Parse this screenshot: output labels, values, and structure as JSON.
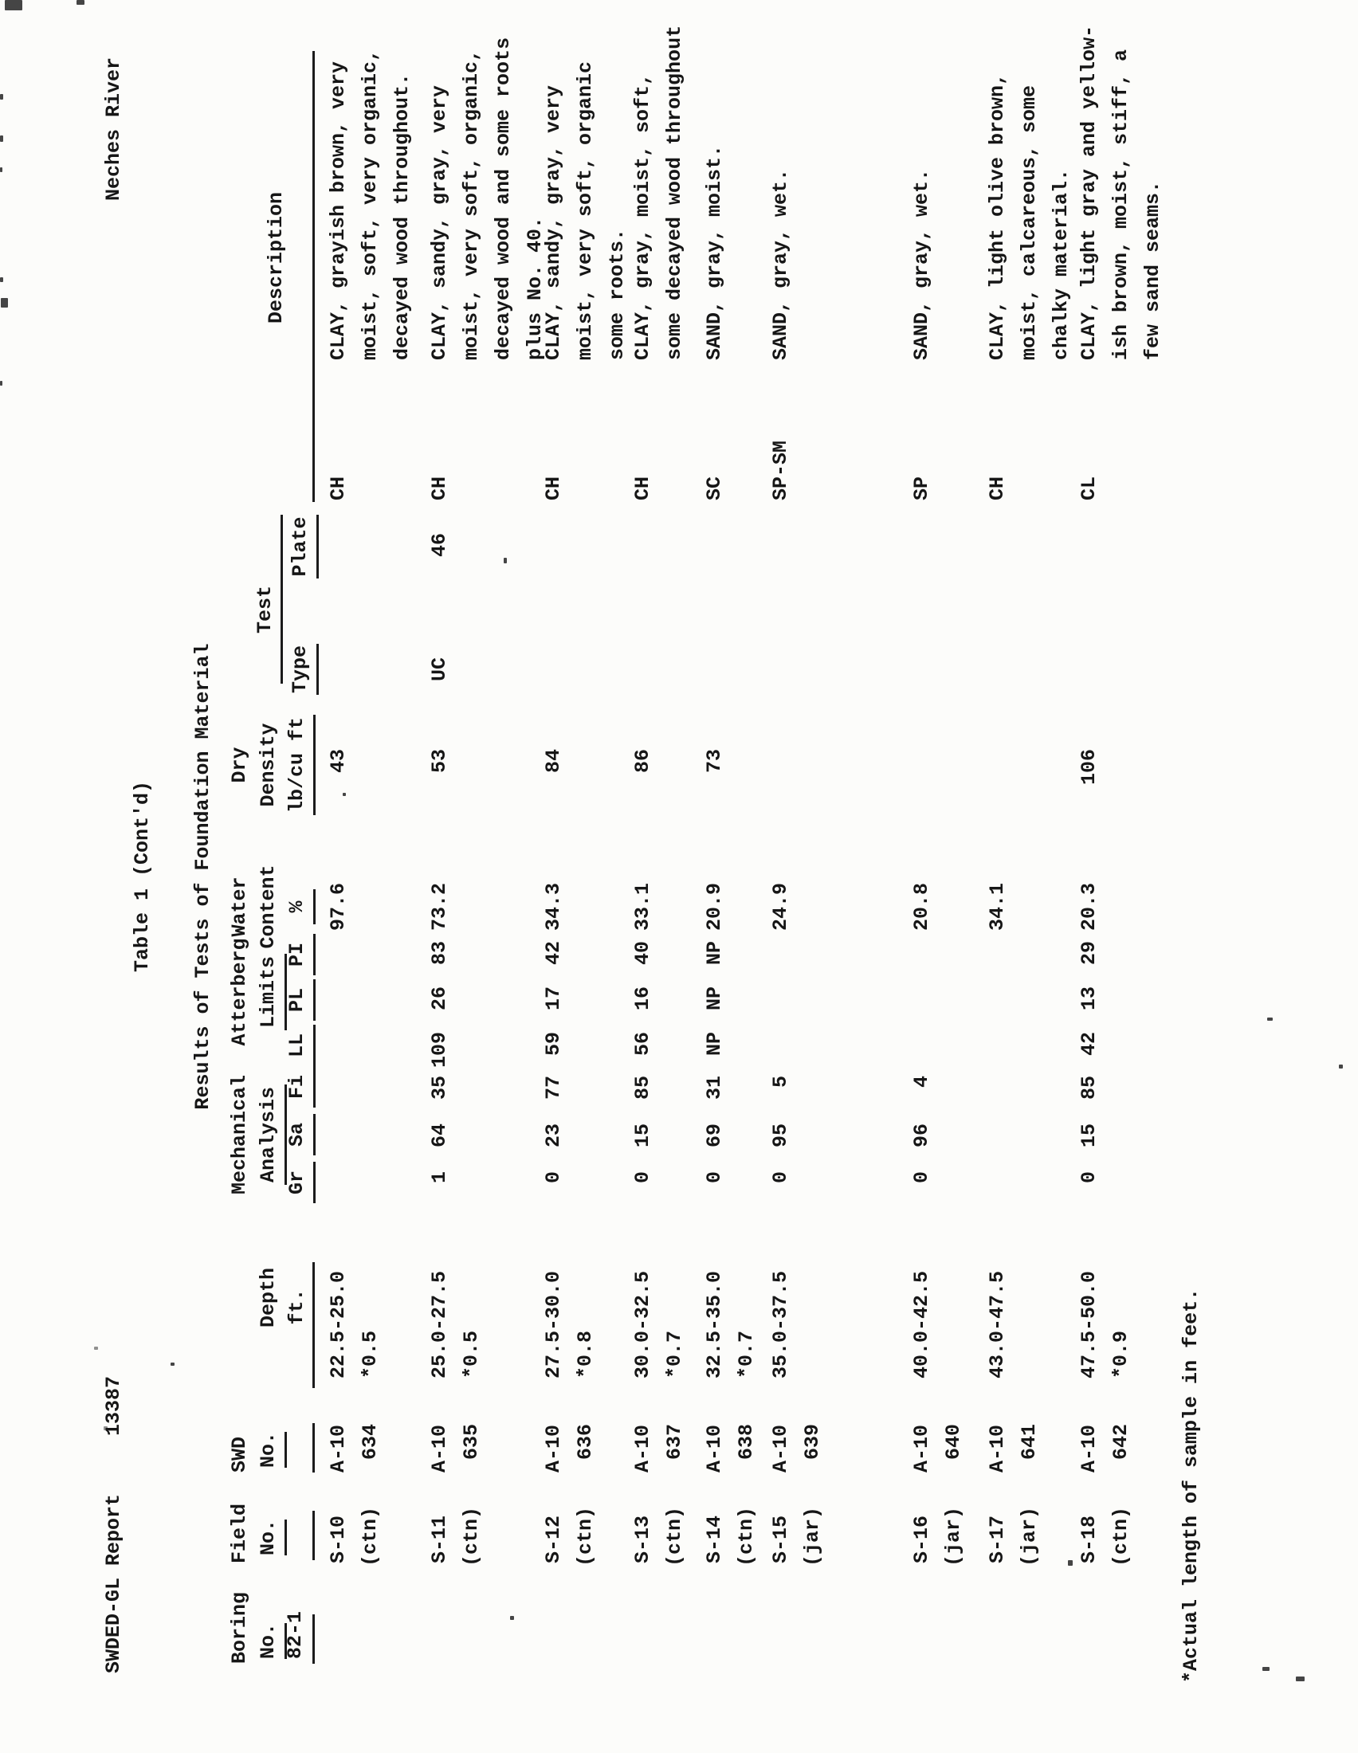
{
  "titles": {
    "report_label": "SWDED-GL Report",
    "report_number": "13387",
    "table_title": "Table 1 (Cont'd)",
    "project_name": "Neches River",
    "subtitle": "Results of Tests of Foundation Material",
    "footnote": "*Actual length of sample in feet."
  },
  "headers": {
    "boring": [
      "Boring",
      "No."
    ],
    "field": [
      "Field",
      "No."
    ],
    "swd": [
      "SWD",
      "No."
    ],
    "depth": [
      "Depth",
      "ft."
    ],
    "mechanical": [
      "Mechanical",
      "Analysis"
    ],
    "mech_subs": [
      "Gr",
      "Sa",
      "Fi"
    ],
    "atterberg": [
      "Atterberg",
      "Limits"
    ],
    "atter_subs": [
      "LL",
      "PL",
      "PI"
    ],
    "water": [
      "Water",
      "Content",
      "%"
    ],
    "dry": [
      "Dry",
      "Density",
      "lb/cu ft"
    ],
    "test": "Test",
    "test_subs": [
      "Type",
      "Plate"
    ],
    "description": "Description"
  },
  "boring_no": "82-1",
  "rows": [
    {
      "field": [
        "S-10",
        "(ctn)"
      ],
      "swd": [
        "A-10",
        "634"
      ],
      "depth": [
        "22.5-25.0",
        "*0.5"
      ],
      "gr": "",
      "sa": "",
      "fi": "",
      "ll": "",
      "pl": "",
      "pi": "",
      "wc": "97.6",
      "dd": "43",
      "type": "",
      "plate": "",
      "sym": "CH",
      "desc": [
        "CLAY, grayish brown, very",
        "moist, soft, very organic,",
        "decayed wood throughout."
      ]
    },
    {
      "field": [
        "S-11",
        "(ctn)"
      ],
      "swd": [
        "A-10",
        "635"
      ],
      "depth": [
        "25.0-27.5",
        "*0.5"
      ],
      "gr": "1",
      "sa": "64",
      "fi": "35",
      "ll": "109",
      "pl": "26",
      "pi": "83",
      "wc": "73.2",
      "dd": "53",
      "type": "UC",
      "plate": "46",
      "sym": "CH",
      "desc": [
        "CLAY, sandy, gray, very",
        "moist, very soft, organic,",
        "decayed wood and some roots",
        "plus No. 40."
      ]
    },
    {
      "field": [
        "S-12",
        "(ctn)"
      ],
      "swd": [
        "A-10",
        "636"
      ],
      "depth": [
        "27.5-30.0",
        "*0.8"
      ],
      "gr": "0",
      "sa": "23",
      "fi": "77",
      "ll": "59",
      "pl": "17",
      "pi": "42",
      "wc": "34.3",
      "dd": "84",
      "type": "",
      "plate": "",
      "sym": "CH",
      "desc": [
        "CLAY, sandy, gray, very",
        "moist, very soft, organic",
        "some roots."
      ]
    },
    {
      "field": [
        "S-13",
        "(ctn)"
      ],
      "swd": [
        "A-10",
        "637"
      ],
      "depth": [
        "30.0-32.5",
        "*0.7"
      ],
      "gr": "0",
      "sa": "15",
      "fi": "85",
      "ll": "56",
      "pl": "16",
      "pi": "40",
      "wc": "33.1",
      "dd": "86",
      "type": "",
      "plate": "",
      "sym": "CH",
      "desc": [
        "CLAY, gray, moist, soft,",
        "some decayed wood throughout"
      ]
    },
    {
      "field": [
        "S-14",
        "(ctn)"
      ],
      "swd": [
        "A-10",
        "638"
      ],
      "depth": [
        "32.5-35.0",
        "*0.7"
      ],
      "gr": "0",
      "sa": "69",
      "fi": "31",
      "ll": "NP",
      "pl": "NP",
      "pi": "NP",
      "wc": "20.9",
      "dd": "73",
      "type": "",
      "plate": "",
      "sym": "SC",
      "desc": [
        "SAND, gray, moist."
      ]
    },
    {
      "field": [
        "S-15",
        "(jar)"
      ],
      "swd": [
        "A-10",
        "639"
      ],
      "depth": [
        "35.0-37.5",
        ""
      ],
      "gr": "0",
      "sa": "95",
      "fi": "5",
      "ll": "",
      "pl": "",
      "pi": "",
      "wc": "24.9",
      "dd": "",
      "type": "",
      "plate": "",
      "sym": "SP-SM",
      "desc": [
        "SAND, gray, wet."
      ]
    },
    {
      "field": [
        "S-16",
        "(jar)"
      ],
      "swd": [
        "A-10",
        "640"
      ],
      "depth": [
        "40.0-42.5",
        ""
      ],
      "gr": "0",
      "sa": "96",
      "fi": "4",
      "ll": "",
      "pl": "",
      "pi": "",
      "wc": "20.8",
      "dd": "",
      "type": "",
      "plate": "",
      "sym": "SP",
      "desc": [
        "SAND, gray, wet."
      ]
    },
    {
      "field": [
        "S-17",
        "(jar)"
      ],
      "swd": [
        "A-10",
        "641"
      ],
      "depth": [
        "43.0-47.5",
        ""
      ],
      "gr": "",
      "sa": "",
      "fi": "",
      "ll": "",
      "pl": "",
      "pi": "",
      "wc": "34.1",
      "dd": "",
      "type": "",
      "plate": "",
      "sym": "CH",
      "desc": [
        "CLAY, light olive brown,",
        "moist, calcareous, some",
        "chalky material."
      ]
    },
    {
      "field": [
        "S-18",
        "(ctn)"
      ],
      "swd": [
        "A-10",
        "642"
      ],
      "depth": [
        "47.5-50.0",
        "*0.9"
      ],
      "gr": "0",
      "sa": "15",
      "fi": "85",
      "ll": "42",
      "pl": "13",
      "pi": "29",
      "wc": "20.3",
      "dd": "106",
      "type": "",
      "plate": "",
      "sym": "CL",
      "desc": [
        "CLAY, light gray and yellow-",
        "ish brown, moist, stiff, a",
        "few sand seams."
      ]
    }
  ]
}
